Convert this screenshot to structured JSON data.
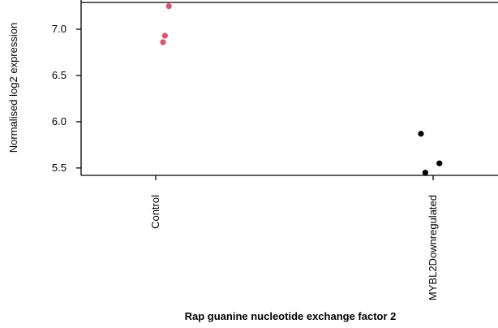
{
  "chart_data": {
    "type": "scatter",
    "title": "",
    "xlabel": "Rap guanine nucleotide exchange factor 2",
    "ylabel": "Normalised log2 expression",
    "categories": [
      "Control",
      "MYBL2Downregulated"
    ],
    "y_ticks": [
      "5.5",
      "6.0",
      "6.5",
      "7.0"
    ],
    "ylim": [
      5.42,
      7.29
    ],
    "grid": false,
    "series": [
      {
        "category": "Control",
        "color": "#df536b",
        "points": [
          {
            "x_jitter": 0.15,
            "y": 6.86
          },
          {
            "x_jitter": 0.19,
            "y": 6.93
          },
          {
            "x_jitter": 0.27,
            "y": 7.25
          }
        ]
      },
      {
        "category": "MYBL2Downregulated",
        "color": "#000000",
        "points": [
          {
            "x_jitter": -0.25,
            "y": 5.87
          },
          {
            "x_jitter": -0.16,
            "y": 5.45
          },
          {
            "x_jitter": 0.13,
            "y": 5.55
          }
        ]
      }
    ]
  }
}
